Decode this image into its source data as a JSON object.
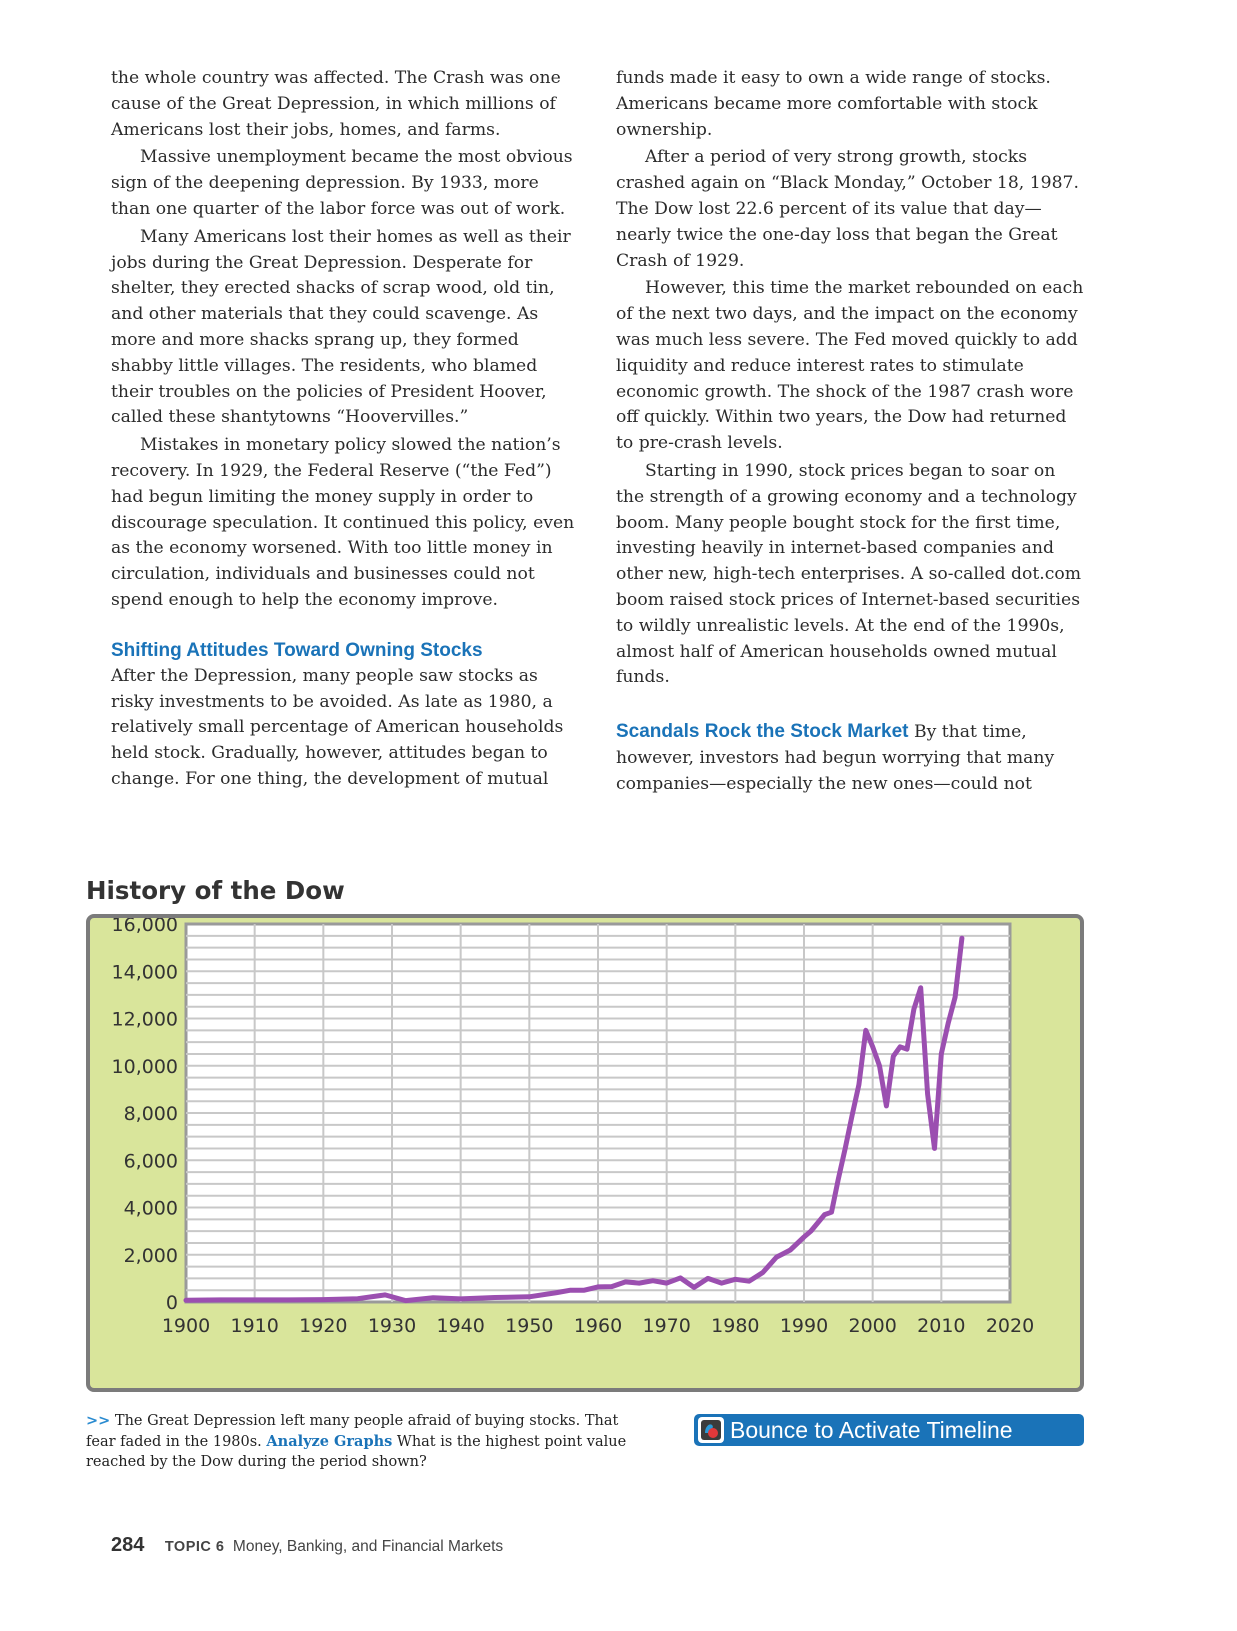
{
  "left_column": {
    "p1": "the whole country was affected. The Crash was one cause of the Great Depression, in which millions of Americans lost their jobs, homes, and farms.",
    "p2": "Massive unemployment became the most obvious sign of the deepening depression. By 1933, more than one quarter of the labor force was out of work.",
    "p3": "Many Americans lost their homes as well as their jobs during the Great Depression. Desperate for shelter, they erected shacks of scrap wood, old tin, and other materials that they could scavenge. As more and more shacks sprang up, they formed shabby little villages. The residents, who blamed their troubles on the policies of President Hoover, called these shantytowns “Hoovervilles.”",
    "p4": "Mistakes in monetary policy slowed the nation’s recovery. In 1929, the Federal Reserve (“the Fed”) had begun limiting the money supply in order to discourage speculation. It continued this policy, even as the economy worsened. With too little money in circulation, individuals and businesses could not spend enough to help the economy improve.",
    "heading": "Shifting Attitudes Toward Owning Stocks",
    "p5": "After the Depression, many people saw stocks as risky investments to be avoided. As late as 1980, a relatively small percentage of American households held stock. Gradually, however, attitudes began to change. For one thing, the development of mutual"
  },
  "right_column": {
    "p1": "funds made it easy to own a wide range of stocks. Americans became more comfortable with stock ownership.",
    "p2": "After a period of very strong growth, stocks crashed again on “Black Monday,” October 18, 1987. The Dow lost 22.6 percent of its value that day—nearly twice the one-day loss that began the Great Crash of 1929.",
    "p3": "However, this time the market rebounded on each of the next two days, and the impact on the economy was much less severe. The Fed moved quickly to add liquidity and reduce interest rates to stimulate economic growth. The shock of the 1987 crash wore off quickly. Within two years, the Dow had returned to pre-crash levels.",
    "p4": "Starting in 1990, stock prices began to soar on the strength of a growing economy and a technology boom. Many people bought stock for the first time, investing heavily in internet-based companies and other new, high-tech enterprises. A so-called dot.com boom raised stock prices of Internet-based securities to wildly unrealistic levels. At the end of the 1990s, almost half of American households owned mutual funds.",
    "heading": "Scandals Rock the Stock Market",
    "p5": "By that time, however, investors had begun worrying that many companies—especially the new ones—could not"
  },
  "chart_data": {
    "type": "line",
    "title": "History of the Dow",
    "xlabel": "",
    "ylabel": "",
    "xlim": [
      1900,
      2020
    ],
    "ylim": [
      0,
      16000
    ],
    "x_ticks": [
      "1900",
      "1910",
      "1920",
      "1930",
      "1940",
      "1950",
      "1960",
      "1970",
      "1980",
      "1990",
      "2000",
      "2010",
      "2020"
    ],
    "y_ticks": [
      "0",
      "2,000",
      "4,000",
      "6,000",
      "8,000",
      "10,000",
      "12,000",
      "14,000",
      "16,000"
    ],
    "grid": true,
    "line_color": "#9b4fb0",
    "series": [
      {
        "x": [
          1900,
          1905,
          1910,
          1915,
          1920,
          1925,
          1929,
          1932,
          1936,
          1940,
          1945,
          1950,
          1954,
          1956,
          1958,
          1960,
          1962,
          1964,
          1966,
          1968,
          1970,
          1972,
          1974,
          1976,
          1978,
          1980,
          1982,
          1984,
          1986,
          1987,
          1988,
          1990,
          1991,
          1993,
          1994,
          1995,
          1996,
          1997,
          1998,
          1999,
          2000,
          2001,
          2002,
          2003,
          2004,
          2005,
          2006,
          2007,
          2008,
          2009,
          2010,
          2011,
          2012,
          2013
        ],
        "values": [
          70,
          90,
          90,
          90,
          100,
          140,
          300,
          60,
          180,
          130,
          190,
          220,
          400,
          500,
          500,
          640,
          650,
          850,
          800,
          900,
          800,
          1020,
          620,
          1000,
          800,
          960,
          880,
          1250,
          1900,
          2050,
          2200,
          2750,
          3000,
          3700,
          3800,
          5200,
          6500,
          7900,
          9200,
          11500,
          10800,
          10000,
          8300,
          10400,
          10800,
          10700,
          12400,
          13300,
          8800,
          6500,
          10500,
          11800,
          12900,
          15400
        ]
      }
    ]
  },
  "caption": {
    "prefix": ">>",
    "text": "The Great Depression left many people afraid of buying stocks. That fear faded in the 1980s.",
    "analyze_label": "Analyze Graphs",
    "question": "What is the highest point value reached by the Dow during the period shown?"
  },
  "bounce_button": {
    "label": "Bounce to Activate Timeline",
    "color": "#1a73b8"
  },
  "footer": {
    "page_number": "284",
    "topic_label": "TOPIC 6",
    "topic_title": "Money, Banking, and Financial Markets"
  }
}
